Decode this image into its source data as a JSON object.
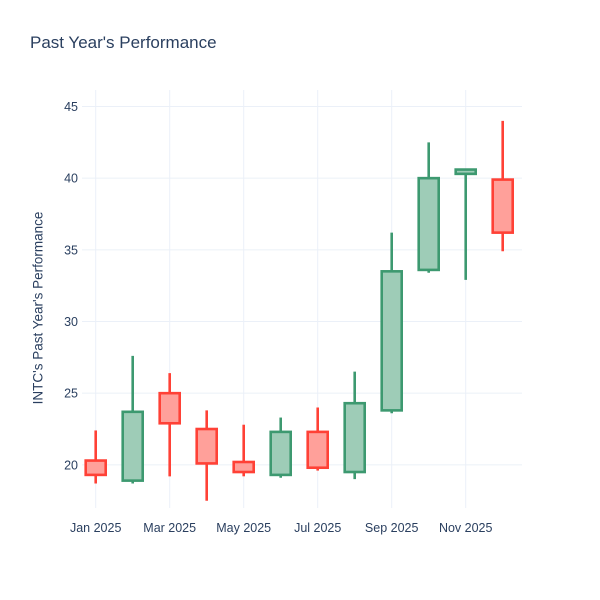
{
  "chart_data": {
    "type": "candlestick",
    "title": "Past Year's Performance",
    "xlabel": "",
    "ylabel": "INTC's Past Year's Performance",
    "legend": "none",
    "grid": true,
    "grid_color": "#EBF0F8",
    "text_color": "#2A3F5F",
    "background_color": "#FFFFFF",
    "increasing_line_color": "#3D9970",
    "increasing_fill_color": "#9ECCB7",
    "decreasing_line_color": "#FF4136",
    "decreasing_fill_color": "#FFA09A",
    "ylim": [
      16.99,
      46.15
    ],
    "y_ticks": [
      20,
      25,
      30,
      35,
      40,
      45
    ],
    "x_ticks": [
      {
        "index": 0,
        "label": "Jan 2025"
      },
      {
        "index": 2,
        "label": "Mar 2025"
      },
      {
        "index": 4,
        "label": "May 2025"
      },
      {
        "index": 6,
        "label": "Jul 2025"
      },
      {
        "index": 8,
        "label": "Sep 2025"
      },
      {
        "index": 10,
        "label": "Nov 2025"
      }
    ],
    "categories": [
      "Jan 2025",
      "Feb 2025",
      "Mar 2025",
      "Apr 2025",
      "May 2025",
      "Jun 2025",
      "Jul 2025",
      "Aug 2025",
      "Sep 2025",
      "Oct 2025",
      "Nov 2025",
      "Dec 2025"
    ],
    "open": [
      20.3,
      18.9,
      25.0,
      22.5,
      20.2,
      19.3,
      22.3,
      19.5,
      23.8,
      33.6,
      40.3,
      39.9
    ],
    "high": [
      22.4,
      27.6,
      26.4,
      23.8,
      22.8,
      23.3,
      24.0,
      26.5,
      36.2,
      42.5,
      40.6,
      44.0
    ],
    "low": [
      18.7,
      18.7,
      19.2,
      17.5,
      19.2,
      19.1,
      19.6,
      19.0,
      23.6,
      33.4,
      32.9,
      34.9
    ],
    "close": [
      19.3,
      23.7,
      22.9,
      20.1,
      19.5,
      22.3,
      19.8,
      24.3,
      33.5,
      40.0,
      40.6,
      36.2
    ]
  }
}
